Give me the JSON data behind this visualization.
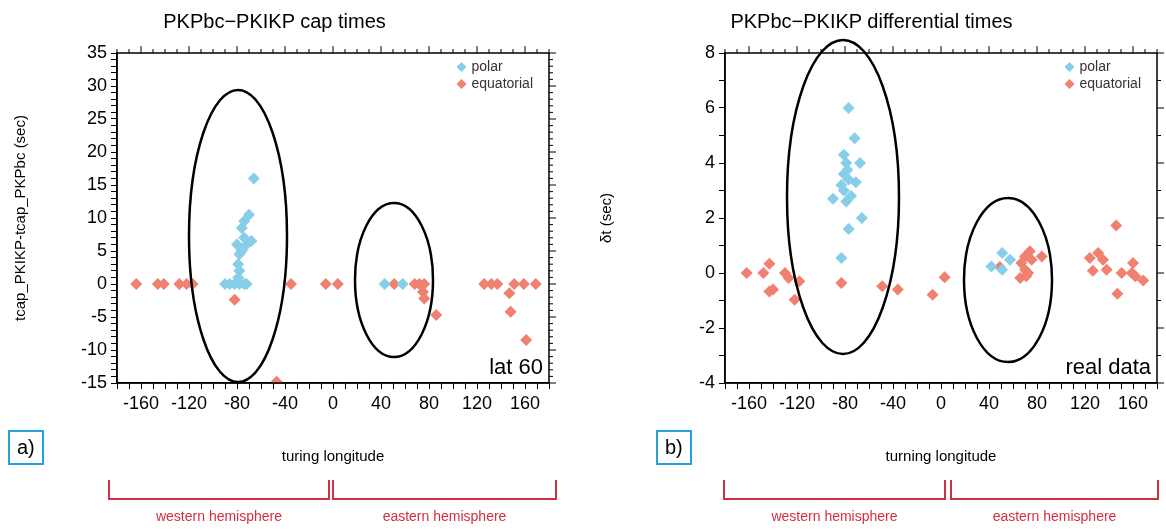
{
  "chart_data": [
    {
      "type": "scatter",
      "title": "PKPbc−PKIKP cap times",
      "xlabel": "turing longitude",
      "ylabel": "tcap_PKIKP-tcap_PKPbc (sec)",
      "xlim": [
        -180,
        180
      ],
      "xticks": [
        -160,
        -120,
        -80,
        -40,
        0,
        40,
        80,
        120,
        160
      ],
      "ylim": [
        -15,
        35
      ],
      "yticks": [
        -15,
        -10,
        -5,
        0,
        5,
        10,
        15,
        20,
        25,
        30,
        35
      ],
      "marker": "diamond",
      "legend": "top right",
      "grid": false,
      "annotations": [
        "lat 60",
        "a)",
        "western hemisphere",
        "eastern hemisphere"
      ],
      "series": [
        {
          "name": "polar",
          "color": "#87cee8",
          "x": [
            -90,
            -86,
            -82,
            -78,
            -74,
            -72,
            -79,
            -78,
            -79,
            -78,
            -80,
            -76,
            -74,
            -72,
            -68,
            -76,
            -74,
            -70,
            -66,
            43,
            58
          ],
          "values": [
            0,
            0,
            0,
            0,
            0,
            0,
            1,
            2,
            3,
            4.5,
            6,
            5,
            7,
            6,
            6.5,
            8.5,
            9.5,
            10.5,
            16,
            0,
            0
          ]
        },
        {
          "name": "equatorial",
          "color": "#f08070",
          "x": [
            -164,
            -146,
            -141,
            -128,
            -122,
            -117,
            -35,
            -6,
            4,
            51,
            68,
            72,
            76,
            126,
            132,
            137,
            151,
            159,
            169,
            -82,
            147,
            148,
            161,
            86,
            76,
            75,
            -47
          ],
          "values": [
            0,
            0,
            0,
            0,
            0,
            0,
            0,
            0,
            0,
            0,
            0,
            0,
            0,
            0,
            0,
            0,
            0,
            0,
            0,
            -2.4,
            -1.4,
            -4.2,
            -8.5,
            -4.7,
            -2.2,
            -1.2,
            -14.8
          ]
        }
      ]
    },
    {
      "type": "scatter",
      "title": "PKPbc−PKIKP differential times",
      "xlabel": "turning longitude",
      "ylabel": "δt (sec)",
      "xlim": [
        -180,
        180
      ],
      "xticks": [
        -160,
        -120,
        -80,
        -40,
        0,
        40,
        80,
        120,
        160
      ],
      "ylim": [
        -4,
        8
      ],
      "yticks": [
        -4,
        -2,
        0,
        2,
        4,
        6,
        8
      ],
      "marker": "diamond",
      "legend": "top right",
      "grid": false,
      "annotations": [
        "real data",
        "b)",
        "western hemisphere",
        "eastern hemisphere"
      ],
      "series": [
        {
          "name": "polar",
          "color": "#87cee8",
          "x": [
            -77,
            -72,
            -67.5,
            -66,
            -77,
            -83,
            -90,
            -81,
            -79,
            -81,
            -77,
            -71,
            -81,
            -75,
            -79,
            -83,
            -78,
            42,
            51,
            51,
            57.5
          ],
          "values": [
            6.0,
            4.9,
            4.0,
            2.0,
            1.6,
            0.55,
            2.7,
            4.3,
            4.0,
            3.6,
            3.4,
            3.3,
            3.0,
            2.8,
            2.6,
            3.2,
            3.75,
            0.24,
            0.73,
            0.12,
            0.48
          ]
        },
        {
          "name": "equatorial",
          "color": "#f08070",
          "x": [
            -162,
            -148,
            -143,
            -143,
            -140,
            -130,
            -127,
            -122,
            -118,
            -83,
            -49,
            -36,
            -7,
            3,
            49,
            66,
            67,
            70,
            74,
            72.5,
            70,
            75.5,
            71,
            84,
            124,
            131,
            135,
            126.5,
            138,
            146,
            147,
            150.5,
            159,
            160,
            162,
            168.5
          ],
          "values": [
            0,
            0,
            0.34,
            -0.67,
            -0.6,
            0,
            -0.18,
            -0.97,
            -0.3,
            -0.36,
            -0.48,
            -0.6,
            -0.79,
            -0.15,
            0.22,
            -0.18,
            0.36,
            0.6,
            0.79,
            0,
            0.12,
            0.48,
            -0.12,
            0.6,
            0.55,
            0.73,
            0.48,
            0.08,
            0.12,
            1.73,
            -0.75,
            0,
            0,
            0.36,
            -0.12,
            -0.27
          ]
        }
      ]
    }
  ]
}
